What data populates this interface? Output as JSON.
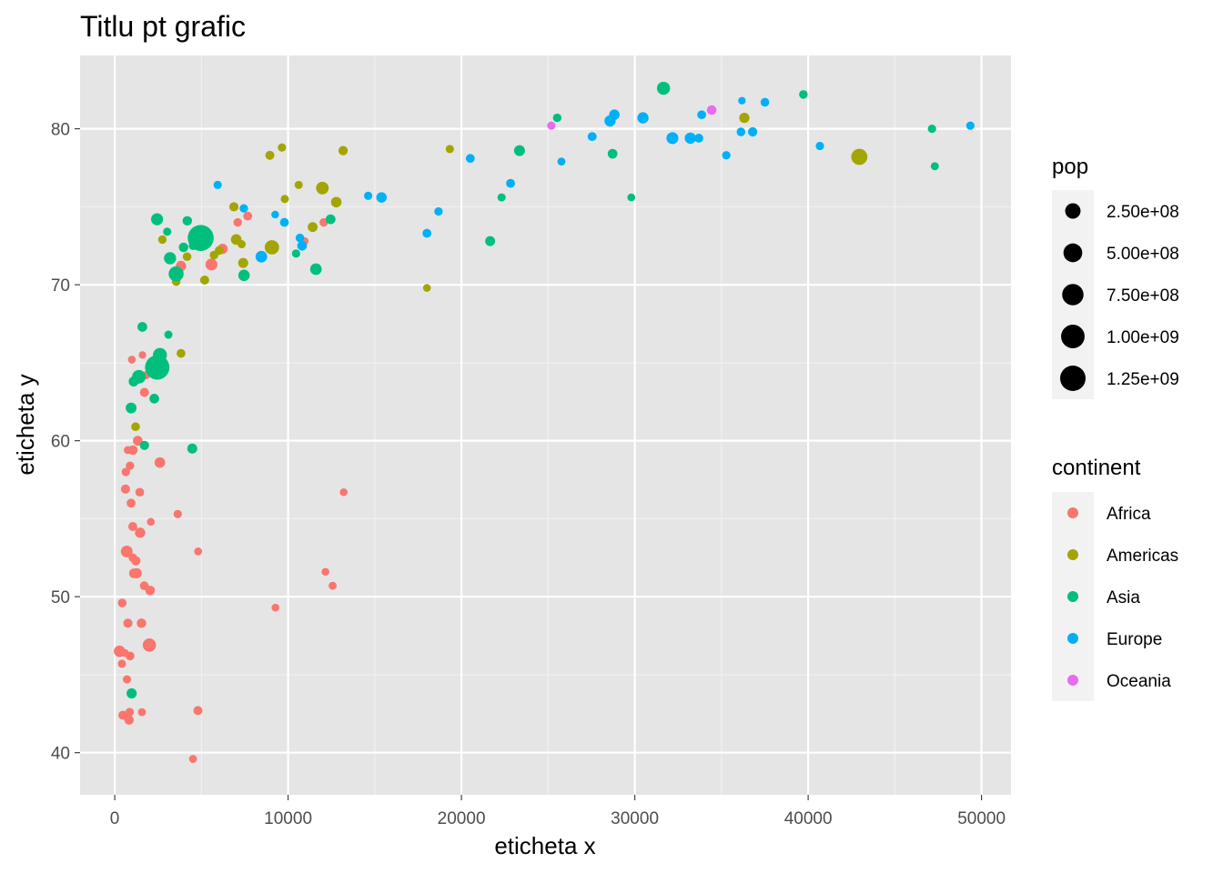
{
  "chart_data": {
    "type": "scatter",
    "title": "Titlu pt grafic",
    "xlabel": "eticheta x",
    "ylabel": "eticheta y",
    "xlim": [
      -2000,
      51700
    ],
    "ylim": [
      37.3,
      84.7
    ],
    "x_ticks": [
      0,
      10000,
      20000,
      30000,
      40000,
      50000
    ],
    "x_tick_labels": [
      "0",
      "10000",
      "20000",
      "30000",
      "40000",
      "50000"
    ],
    "y_ticks": [
      40,
      50,
      60,
      70,
      80
    ],
    "y_tick_labels": [
      "40",
      "50",
      "60",
      "70",
      "80"
    ],
    "grid": true,
    "background": "#e5e5e5",
    "legend_position": "right",
    "size_legend": {
      "title": "pop",
      "entries": [
        {
          "label": "2.50e+08",
          "value": 250000000
        },
        {
          "label": "5.00e+08",
          "value": 500000000
        },
        {
          "label": "7.50e+08",
          "value": 750000000
        },
        {
          "label": "1.00e+09",
          "value": 1000000000
        },
        {
          "label": "1.25e+09",
          "value": 1250000000
        }
      ]
    },
    "color_legend": {
      "title": "continent",
      "entries": [
        {
          "label": "Africa",
          "color": "#F8766D"
        },
        {
          "label": "Americas",
          "color": "#A3A500"
        },
        {
          "label": "Asia",
          "color": "#00BF7D"
        },
        {
          "label": "Europe",
          "color": "#00B0F6"
        },
        {
          "label": "Oceania",
          "color": "#E76BF3"
        }
      ]
    },
    "series": [
      {
        "name": "Africa",
        "color": "#F8766D",
        "points": [
          [
            6223,
            72.3,
            33
          ],
          [
            4797,
            42.7,
            12
          ],
          [
            1441,
            56.7,
            8
          ],
          [
            12570,
            50.7,
            2
          ],
          [
            1217,
            52.3,
            14
          ],
          [
            430,
            49.6,
            8
          ],
          [
            2042,
            50.4,
            18
          ],
          [
            706,
            44.7,
            4
          ],
          [
            1704,
            50.7,
            10
          ],
          [
            986,
            65.2,
            1
          ],
          [
            277,
            46.5,
            65
          ],
          [
            3633,
            55.3,
            4
          ],
          [
            1545,
            48.3,
            18
          ],
          [
            2082,
            54.8,
            1
          ],
          [
            5581,
            71.3,
            80
          ],
          [
            12154,
            51.6,
            1
          ],
          [
            641,
            58.0,
            5
          ],
          [
            691,
            52.9,
            77
          ],
          [
            13206,
            56.7,
            1
          ],
          [
            753,
            59.4,
            2
          ],
          [
            1327,
            60.0,
            23
          ],
          [
            943,
            56.0,
            10
          ],
          [
            579,
            46.4,
            1
          ],
          [
            1463,
            54.1,
            35
          ],
          [
            1569,
            42.6,
            2
          ],
          [
            415,
            45.7,
            3
          ],
          [
            12057,
            74.0,
            6
          ],
          [
            1045,
            59.4,
            19
          ],
          [
            759,
            48.3,
            13
          ],
          [
            1042,
            54.5,
            12
          ],
          [
            1803,
            64.2,
            3
          ],
          [
            10957,
            72.8,
            1
          ],
          [
            3820,
            71.2,
            33
          ],
          [
            824,
            42.1,
            20
          ],
          [
            4811,
            52.9,
            2
          ],
          [
            620,
            56.9,
            13
          ],
          [
            1999,
            46.9,
            135
          ],
          [
            883,
            46.2,
            9
          ],
          [
            1599,
            65.5,
            0.2
          ],
          [
            1712,
            63.1,
            12
          ],
          [
            863,
            42.6,
            6
          ],
          [
            7093,
            74.0,
            6
          ],
          [
            3820,
            71.2,
            33
          ],
          [
            2602,
            58.6,
            42
          ],
          [
            2042,
            50.4,
            18
          ],
          [
            4513,
            39.6,
            1.1
          ],
          [
            9270,
            49.3,
            1.1
          ],
          [
            1108,
            51.5,
            23
          ],
          [
            883,
            58.4,
            5
          ],
          [
            7670,
            74.4,
            10
          ],
          [
            1271,
            51.5,
            29
          ],
          [
            469,
            42.4,
            12
          ],
          [
            4513,
            39.6,
            1.1
          ],
          [
            1044,
            52.5,
            6
          ]
        ]
      },
      {
        "name": "Americas",
        "color": "#A3A500",
        "points": [
          [
            12779,
            75.3,
            40
          ],
          [
            3822,
            65.6,
            9
          ],
          [
            9066,
            72.4,
            190
          ],
          [
            36319,
            80.7,
            33
          ],
          [
            13172,
            78.6,
            16
          ],
          [
            7007,
            72.9,
            44
          ],
          [
            9645,
            78.8,
            4
          ],
          [
            8948,
            78.3,
            11
          ],
          [
            6025,
            72.2,
            9
          ],
          [
            6873,
            75.0,
            14
          ],
          [
            5728,
            71.9,
            7
          ],
          [
            5186,
            70.3,
            13
          ],
          [
            1202,
            60.9,
            8
          ],
          [
            3548,
            70.2,
            7
          ],
          [
            7321,
            72.6,
            3
          ],
          [
            11978,
            76.2,
            108
          ],
          [
            2749,
            72.9,
            6
          ],
          [
            9809,
            75.5,
            3
          ],
          [
            4173,
            71.8,
            7
          ],
          [
            7409,
            71.4,
            29
          ],
          [
            19329,
            78.7,
            4
          ],
          [
            18009,
            69.8,
            1
          ],
          [
            42952,
            78.2,
            301
          ],
          [
            10611,
            76.4,
            3
          ],
          [
            11416,
            73.7,
            26
          ]
        ]
      },
      {
        "name": "Asia",
        "color": "#00BF7D",
        "points": [
          [
            975,
            43.8,
            32
          ],
          [
            29796,
            75.6,
            1
          ],
          [
            1391,
            64.1,
            150
          ],
          [
            1714,
            59.7,
            14
          ],
          [
            4959,
            73.0,
            1319
          ],
          [
            39725,
            82.2,
            7
          ],
          [
            2452,
            64.7,
            1110
          ],
          [
            3541,
            70.7,
            224
          ],
          [
            11606,
            71.0,
            69
          ],
          [
            4471,
            59.5,
            28
          ],
          [
            25523,
            80.7,
            6
          ],
          [
            31656,
            82.6,
            127
          ],
          [
            4519,
            72.5,
            6
          ],
          [
            1593,
            67.3,
            23
          ],
          [
            23348,
            78.6,
            49
          ],
          [
            47307,
            77.6,
            2.5
          ],
          [
            10461,
            72.0,
            4
          ],
          [
            12452,
            74.2,
            24
          ],
          [
            3096,
            66.8,
            3
          ],
          [
            944,
            62.1,
            47
          ],
          [
            1091,
            63.8,
            28
          ],
          [
            22316,
            75.6,
            3
          ],
          [
            2606,
            65.5,
            169
          ],
          [
            3190,
            71.7,
            91
          ],
          [
            21655,
            72.8,
            27
          ],
          [
            47143,
            80.0,
            4.5
          ],
          [
            3970,
            72.4,
            20
          ],
          [
            4185,
            74.1,
            19
          ],
          [
            28718,
            78.4,
            23
          ],
          [
            7458,
            70.6,
            65
          ],
          [
            2442,
            74.2,
            85
          ],
          [
            3025,
            73.4,
            4
          ],
          [
            2281,
            62.7,
            22
          ]
        ]
      },
      {
        "name": "Europe",
        "color": "#00B0F6",
        "points": [
          [
            5937,
            76.4,
            4
          ],
          [
            36126,
            79.8,
            8
          ],
          [
            33693,
            79.4,
            10
          ],
          [
            7446,
            74.9,
            5
          ],
          [
            10681,
            73.0,
            7
          ],
          [
            14619,
            75.7,
            4
          ],
          [
            22833,
            76.5,
            10
          ],
          [
            35278,
            78.3,
            5
          ],
          [
            33207,
            79.3,
            5
          ],
          [
            30470,
            80.7,
            61
          ],
          [
            32170,
            79.4,
            82
          ],
          [
            27538,
            79.5,
            11
          ],
          [
            18009,
            73.3,
            10
          ],
          [
            36181,
            81.8,
            0.3
          ],
          [
            40676,
            78.9,
            4
          ],
          [
            28570,
            80.5,
            58
          ],
          [
            9254,
            74.5,
            0.7
          ],
          [
            36798,
            79.8,
            16
          ],
          [
            49357,
            80.2,
            4.6
          ],
          [
            15390,
            75.6,
            38
          ],
          [
            20510,
            78.1,
            10
          ],
          [
            10808,
            72.5,
            22
          ],
          [
            9786,
            74.0,
            10
          ],
          [
            18678,
            74.7,
            5
          ],
          [
            25768,
            77.9,
            2
          ],
          [
            28821,
            80.9,
            40
          ],
          [
            33860,
            80.9,
            9
          ],
          [
            37506,
            81.7,
            8
          ],
          [
            8458,
            71.8,
            71
          ],
          [
            33203,
            79.4,
            60
          ]
        ]
      },
      {
        "name": "Oceania",
        "color": "#E76BF3",
        "points": [
          [
            34435,
            81.2,
            20
          ],
          [
            25185,
            80.2,
            4
          ]
        ]
      }
    ]
  }
}
